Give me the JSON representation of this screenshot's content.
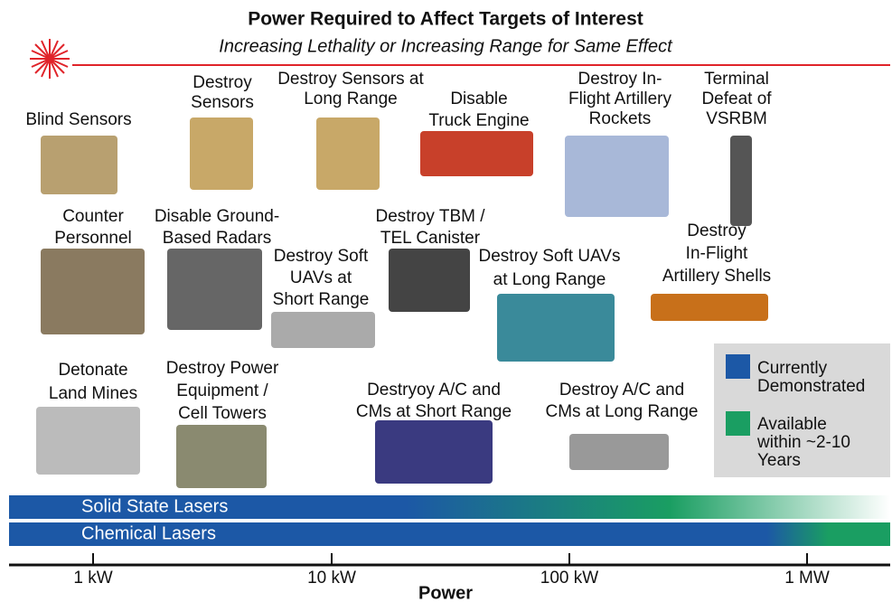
{
  "header": {
    "title": "Power Required to Affect Targets of Interest",
    "subtitle": "Increasing Lethality or Increasing Range for Same Effect"
  },
  "targets": [
    {
      "lines": [
        "Blind Sensors"
      ]
    },
    {
      "lines": [
        "Destroy",
        "Sensors"
      ]
    },
    {
      "lines": [
        "Destroy Sensors at",
        "Long Range"
      ]
    },
    {
      "lines": [
        "Disable",
        "Truck Engine"
      ]
    },
    {
      "lines": [
        "Destroy In-",
        "Flight Artillery",
        "Rockets"
      ]
    },
    {
      "lines": [
        "Terminal",
        "Defeat of",
        "VSRBM"
      ]
    },
    {
      "lines": [
        "Counter",
        "Personnel"
      ]
    },
    {
      "lines": [
        "Disable Ground-",
        "Based Radars"
      ]
    },
    {
      "lines": [
        "Destroy TBM /",
        "TEL Canister"
      ]
    },
    {
      "lines": [
        "Destroy Soft",
        "UAVs at",
        "Short Range"
      ]
    },
    {
      "lines": [
        "Destroy Soft UAVs",
        "at Long Range"
      ]
    },
    {
      "lines": [
        "Destroy",
        "In-Flight",
        "Artillery Shells"
      ]
    },
    {
      "lines": [
        "Detonate",
        "Land Mines"
      ]
    },
    {
      "lines": [
        "Destroy Power",
        "Equipment /",
        "Cell Towers"
      ]
    },
    {
      "lines": [
        "Destryoy A/C and",
        "CMs at Short Range"
      ]
    },
    {
      "lines": [
        "Destroy A/C and",
        "CMs at Long Range"
      ]
    }
  ],
  "legend": [
    {
      "lines": [
        "Currently",
        "Demonstrated"
      ],
      "color": "#1c58a6"
    },
    {
      "lines": [
        "Available",
        "within ~2-10",
        "Years"
      ],
      "color": "#1a9e62"
    }
  ],
  "bars": [
    {
      "label": "Solid State Lasers"
    },
    {
      "label": "Chemical Lasers"
    }
  ],
  "axis": {
    "label": "Power",
    "ticks": [
      "1 kW",
      "10 kW",
      "100 kW",
      "1 MW"
    ]
  }
}
